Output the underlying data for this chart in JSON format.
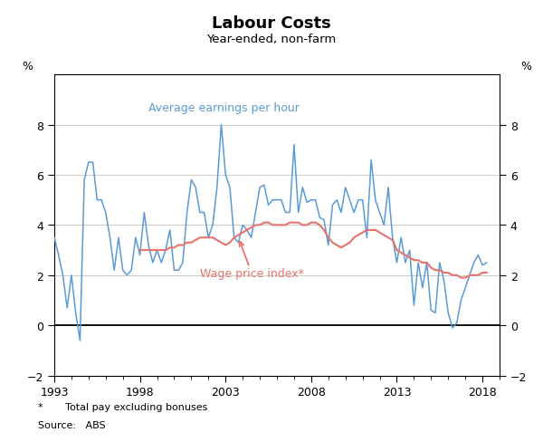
{
  "title": "Labour Costs",
  "subtitle": "Year-ended, non-farm",
  "ylabel_left": "%",
  "ylabel_right": "%",
  "ylim": [
    -2,
    10
  ],
  "yticks": [
    -2,
    0,
    2,
    4,
    6,
    8
  ],
  "footnote1": "*       Total pay excluding bonuses",
  "footnote2": "Source:   ABS",
  "label_aeph": "Average earnings per hour",
  "label_wpi": "Wage price index*",
  "color_aeph": "#5B9BD5",
  "color_wpi": "#E8726B",
  "aeph_dates": [
    1993.0,
    1993.25,
    1993.5,
    1993.75,
    1994.0,
    1994.25,
    1994.5,
    1994.75,
    1995.0,
    1995.25,
    1995.5,
    1995.75,
    1996.0,
    1996.25,
    1996.5,
    1996.75,
    1997.0,
    1997.25,
    1997.5,
    1997.75,
    1998.0,
    1998.25,
    1998.5,
    1998.75,
    1999.0,
    1999.25,
    1999.5,
    1999.75,
    2000.0,
    2000.25,
    2000.5,
    2000.75,
    2001.0,
    2001.25,
    2001.5,
    2001.75,
    2002.0,
    2002.25,
    2002.5,
    2002.75,
    2003.0,
    2003.25,
    2003.5,
    2003.75,
    2004.0,
    2004.25,
    2004.5,
    2004.75,
    2005.0,
    2005.25,
    2005.5,
    2005.75,
    2006.0,
    2006.25,
    2006.5,
    2006.75,
    2007.0,
    2007.25,
    2007.5,
    2007.75,
    2008.0,
    2008.25,
    2008.5,
    2008.75,
    2009.0,
    2009.25,
    2009.5,
    2009.75,
    2010.0,
    2010.25,
    2010.5,
    2010.75,
    2011.0,
    2011.25,
    2011.5,
    2011.75,
    2012.0,
    2012.25,
    2012.5,
    2012.75,
    2013.0,
    2013.25,
    2013.5,
    2013.75,
    2014.0,
    2014.25,
    2014.5,
    2014.75,
    2015.0,
    2015.25,
    2015.5,
    2015.75,
    2016.0,
    2016.25,
    2016.5,
    2016.75,
    2017.0,
    2017.25,
    2017.5,
    2017.75,
    2018.0,
    2018.25
  ],
  "aeph_values": [
    3.5,
    2.8,
    2.0,
    0.7,
    2.0,
    0.5,
    -0.6,
    5.8,
    6.5,
    6.5,
    5.0,
    5.0,
    4.5,
    3.5,
    2.2,
    3.5,
    2.2,
    2.0,
    2.2,
    3.5,
    2.8,
    4.5,
    3.2,
    2.5,
    3.0,
    2.5,
    3.0,
    3.8,
    2.2,
    2.2,
    2.5,
    4.5,
    5.8,
    5.5,
    4.5,
    4.5,
    3.5,
    4.0,
    5.5,
    8.0,
    6.0,
    5.5,
    3.5,
    3.3,
    4.0,
    3.8,
    3.5,
    4.5,
    5.5,
    5.6,
    4.8,
    5.0,
    5.0,
    5.0,
    4.5,
    4.5,
    7.2,
    4.5,
    5.5,
    4.9,
    5.0,
    5.0,
    4.3,
    4.2,
    3.2,
    4.8,
    5.0,
    4.5,
    5.5,
    5.0,
    4.5,
    5.0,
    5.0,
    3.5,
    6.6,
    5.0,
    4.5,
    4.0,
    5.5,
    3.5,
    2.5,
    3.5,
    2.5,
    3.0,
    0.8,
    2.5,
    1.5,
    2.5,
    0.6,
    0.5,
    2.5,
    1.8,
    0.5,
    -0.1,
    0.1,
    1.0,
    1.5,
    2.0,
    2.5,
    2.8,
    2.4,
    2.5
  ],
  "wpi_dates": [
    1998.0,
    1998.25,
    1998.5,
    1998.75,
    1999.0,
    1999.25,
    1999.5,
    1999.75,
    2000.0,
    2000.25,
    2000.5,
    2000.75,
    2001.0,
    2001.25,
    2001.5,
    2001.75,
    2002.0,
    2002.25,
    2002.5,
    2002.75,
    2003.0,
    2003.25,
    2003.5,
    2003.75,
    2004.0,
    2004.25,
    2004.5,
    2004.75,
    2005.0,
    2005.25,
    2005.5,
    2005.75,
    2006.0,
    2006.25,
    2006.5,
    2006.75,
    2007.0,
    2007.25,
    2007.5,
    2007.75,
    2008.0,
    2008.25,
    2008.5,
    2008.75,
    2009.0,
    2009.25,
    2009.5,
    2009.75,
    2010.0,
    2010.25,
    2010.5,
    2010.75,
    2011.0,
    2011.25,
    2011.5,
    2011.75,
    2012.0,
    2012.25,
    2012.5,
    2012.75,
    2013.0,
    2013.25,
    2013.5,
    2013.75,
    2014.0,
    2014.25,
    2014.5,
    2014.75,
    2015.0,
    2015.25,
    2015.5,
    2015.75,
    2016.0,
    2016.25,
    2016.5,
    2016.75,
    2017.0,
    2017.25,
    2017.5,
    2017.75,
    2018.0,
    2018.25
  ],
  "wpi_values": [
    3.0,
    3.0,
    3.0,
    3.0,
    3.0,
    3.0,
    3.0,
    3.1,
    3.1,
    3.2,
    3.2,
    3.3,
    3.3,
    3.4,
    3.5,
    3.5,
    3.5,
    3.5,
    3.4,
    3.3,
    3.2,
    3.3,
    3.5,
    3.6,
    3.7,
    3.8,
    3.9,
    4.0,
    4.0,
    4.1,
    4.1,
    4.0,
    4.0,
    4.0,
    4.0,
    4.1,
    4.1,
    4.1,
    4.0,
    4.0,
    4.1,
    4.1,
    4.0,
    3.8,
    3.5,
    3.3,
    3.2,
    3.1,
    3.2,
    3.3,
    3.5,
    3.6,
    3.7,
    3.8,
    3.8,
    3.8,
    3.7,
    3.6,
    3.5,
    3.4,
    3.0,
    2.9,
    2.8,
    2.7,
    2.6,
    2.6,
    2.5,
    2.5,
    2.3,
    2.2,
    2.2,
    2.1,
    2.1,
    2.0,
    2.0,
    1.9,
    1.9,
    2.0,
    2.0,
    2.0,
    2.1,
    2.1
  ],
  "xlim": [
    1993,
    2019
  ],
  "xticks": [
    1993,
    1998,
    2003,
    2008,
    2013,
    2018
  ]
}
